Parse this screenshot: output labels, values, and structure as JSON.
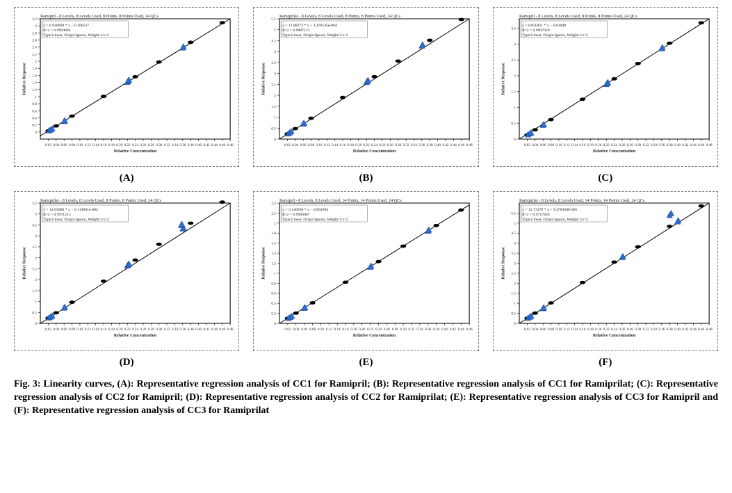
{
  "figure_caption_parts": {
    "prefix": "Fig. 3: Linearity curves, (A): ",
    "a": "Representative regression analysis of CC1 for Ramipril; ",
    "b_label": "(B): ",
    "b": "Representative regression analysis of CC1 for Ramiprilat; ",
    "c_label": "(C): ",
    "c": "Representative regression analysis of CC2 for Ramipril; ",
    "d_label": "(D): ",
    "d": "Representative regression analysis of CC2 for Ramiprilat; ",
    "e_label": "(E): ",
    "e": "Representative regression analysis of CC3 for Ramipril and ",
    "f_label": "(F): ",
    "f": "Representative regression analysis of CC3 for Ramiprilat"
  },
  "global": {
    "background_color": "#ffffff",
    "panel_border_color": "#777777",
    "plot_border_color": "#000000",
    "axis_text_color": "#222222",
    "regression_line_color": "#000000",
    "cal_marker_fill": "#000000",
    "qc_marker_fill": "#2e6fd6",
    "qc_marker_stroke": "#1a4a9a",
    "tick_color": "#000000",
    "info_box_bg": "#ffffff",
    "info_box_text": "#111111",
    "axis_label_fontsize": 6,
    "tick_fontsize": 5,
    "info_fontsize": 5.5,
    "y_axis_title_fontsize": 6,
    "title_fontsize": 6
  },
  "panels": {
    "A": {
      "letter": "(A)",
      "title": "Ramipril - 8 Levels, 8 Levels Used, 8 Points, 8 Points Used, 24 QCs",
      "info_lines": [
        "y = 6.946899 * x − 0.106537",
        "R^2 = 0.9994802",
        "Type:Linear, Origin:Ignore, Weight:1/x^2"
      ],
      "xlabel": "Relative Concentration",
      "ylabel": "Relative Response",
      "xlim": [
        0.0,
        0.48
      ],
      "ylim": [
        -0.2,
        3.2
      ],
      "xticks": [
        0.02,
        0.04,
        0.06,
        0.08,
        0.1,
        0.12,
        0.14,
        0.16,
        0.18,
        0.2,
        0.22,
        0.24,
        0.26,
        0.28,
        0.3,
        0.32,
        0.34,
        0.36,
        0.38,
        0.4,
        0.42,
        0.44,
        0.46,
        0.48
      ],
      "yticks": [
        0.0,
        0.2,
        0.4,
        0.6,
        0.8,
        1.0,
        1.2,
        1.4,
        1.6,
        1.8,
        2.0,
        2.2,
        2.4,
        2.6,
        2.8,
        3.0,
        3.2
      ],
      "cal_points": [
        {
          "x": 0.02,
          "y": 0.0324
        },
        {
          "x": 0.04,
          "y": 0.171
        },
        {
          "x": 0.08,
          "y": 0.449
        },
        {
          "x": 0.16,
          "y": 1.005
        },
        {
          "x": 0.24,
          "y": 1.561
        },
        {
          "x": 0.3,
          "y": 1.978
        },
        {
          "x": 0.38,
          "y": 2.533
        },
        {
          "x": 0.46,
          "y": 3.089
        }
      ],
      "qc_points": [
        {
          "x": 0.022,
          "y": 0.05
        },
        {
          "x": 0.026,
          "y": 0.07
        },
        {
          "x": 0.03,
          "y": 0.1
        },
        {
          "x": 0.06,
          "y": 0.31
        },
        {
          "x": 0.062,
          "y": 0.33
        },
        {
          "x": 0.22,
          "y": 1.42
        },
        {
          "x": 0.222,
          "y": 1.45
        },
        {
          "x": 0.224,
          "y": 1.48
        },
        {
          "x": 0.36,
          "y": 2.39
        },
        {
          "x": 0.362,
          "y": 2.42
        }
      ]
    },
    "B": {
      "letter": "(B)",
      "title": "Ramiprilat - 8 Levels, 8 Levels Used, 8 Points, 8 Points Used, 24 QCs",
      "info_lines": [
        "y = 11.88272 * x + 3.470145e-004",
        "R^2 = 0.9987121",
        "Type:Linear, Origin:Ignore, Weight:1/x^2"
      ],
      "xlabel": "Relative Concentration",
      "ylabel": "Relative Response",
      "xlim": [
        0.0,
        0.48
      ],
      "ylim": [
        0.0,
        5.5
      ],
      "xticks": [
        0.02,
        0.04,
        0.06,
        0.08,
        0.1,
        0.12,
        0.14,
        0.16,
        0.18,
        0.2,
        0.22,
        0.24,
        0.26,
        0.28,
        0.3,
        0.32,
        0.34,
        0.36,
        0.38,
        0.4,
        0.42,
        0.44,
        0.46,
        0.48
      ],
      "yticks": [
        0.0,
        0.5,
        1.0,
        1.5,
        2.0,
        2.5,
        3.0,
        3.5,
        4.0,
        4.5,
        5.0,
        5.5
      ],
      "cal_points": [
        {
          "x": 0.02,
          "y": 0.238
        },
        {
          "x": 0.04,
          "y": 0.476
        },
        {
          "x": 0.08,
          "y": 0.951
        },
        {
          "x": 0.16,
          "y": 1.902
        },
        {
          "x": 0.24,
          "y": 2.852
        },
        {
          "x": 0.3,
          "y": 3.565
        },
        {
          "x": 0.38,
          "y": 4.516
        },
        {
          "x": 0.46,
          "y": 5.466
        }
      ],
      "qc_points": [
        {
          "x": 0.022,
          "y": 0.26
        },
        {
          "x": 0.026,
          "y": 0.31
        },
        {
          "x": 0.03,
          "y": 0.36
        },
        {
          "x": 0.06,
          "y": 0.71
        },
        {
          "x": 0.062,
          "y": 0.74
        },
        {
          "x": 0.22,
          "y": 2.61
        },
        {
          "x": 0.222,
          "y": 2.66
        },
        {
          "x": 0.224,
          "y": 2.7
        },
        {
          "x": 0.36,
          "y": 4.28
        },
        {
          "x": 0.362,
          "y": 4.33
        }
      ]
    },
    "C": {
      "letter": "(C)",
      "title": "Ramipril - 8 Levels, 8 Levels Used, 8 Points, 8 Points Used, 24 QCs",
      "info_lines": [
        "y = 8.050411 * x − 0.03008",
        "R^2 = 0.9997020",
        "Type:Linear, Origin:Ignore, Weight:1/x^2"
      ],
      "xlabel": "Relative Concentration",
      "ylabel": "Relative Response",
      "xlim": [
        0.0,
        0.48
      ],
      "ylim": [
        0.0,
        3.8
      ],
      "xticks": [
        0.02,
        0.04,
        0.06,
        0.08,
        0.1,
        0.12,
        0.14,
        0.16,
        0.18,
        0.2,
        0.22,
        0.24,
        0.26,
        0.28,
        0.3,
        0.32,
        0.34,
        0.36,
        0.38,
        0.4,
        0.42,
        0.44,
        0.46,
        0.48
      ],
      "yticks": [
        0.0,
        0.5,
        1.0,
        1.5,
        2.0,
        2.5,
        3.0,
        3.5
      ],
      "cal_points": [
        {
          "x": 0.02,
          "y": 0.131
        },
        {
          "x": 0.04,
          "y": 0.292
        },
        {
          "x": 0.08,
          "y": 0.614
        },
        {
          "x": 0.16,
          "y": 1.258
        },
        {
          "x": 0.24,
          "y": 1.902
        },
        {
          "x": 0.3,
          "y": 2.385
        },
        {
          "x": 0.38,
          "y": 3.029
        },
        {
          "x": 0.46,
          "y": 3.673
        }
      ],
      "qc_points": [
        {
          "x": 0.022,
          "y": 0.15
        },
        {
          "x": 0.026,
          "y": 0.18
        },
        {
          "x": 0.03,
          "y": 0.21
        },
        {
          "x": 0.06,
          "y": 0.45
        },
        {
          "x": 0.062,
          "y": 0.47
        },
        {
          "x": 0.22,
          "y": 1.74
        },
        {
          "x": 0.222,
          "y": 1.77
        },
        {
          "x": 0.224,
          "y": 1.8
        },
        {
          "x": 0.36,
          "y": 2.87
        },
        {
          "x": 0.362,
          "y": 2.9
        }
      ]
    },
    "D": {
      "letter": "(D)",
      "title": "Ramiprilat - 8 Levels, 8 Levels Used, 8 Points, 8 Points Used, 24 QCs",
      "info_lines": [
        "y = 12.05080 * x − 0.113891e-004",
        "R^2 = 0.9971213",
        "Type:Linear, Origin:Ignore, Weight:1/x^2"
      ],
      "xlabel": "Relative Concentration",
      "ylabel": "Relative Response",
      "xlim": [
        0.0,
        0.48
      ],
      "ylim": [
        0.0,
        5.5
      ],
      "xticks": [
        0.02,
        0.04,
        0.06,
        0.08,
        0.1,
        0.12,
        0.14,
        0.16,
        0.18,
        0.2,
        0.22,
        0.24,
        0.26,
        0.28,
        0.3,
        0.32,
        0.34,
        0.36,
        0.38,
        0.4,
        0.42,
        0.44,
        0.46,
        0.48
      ],
      "yticks": [
        0.0,
        0.5,
        1.0,
        1.5,
        2.0,
        2.5,
        3.0,
        3.5,
        4.0,
        4.5,
        5.0,
        5.5
      ],
      "cal_points": [
        {
          "x": 0.02,
          "y": 0.241
        },
        {
          "x": 0.04,
          "y": 0.482
        },
        {
          "x": 0.08,
          "y": 0.964
        },
        {
          "x": 0.16,
          "y": 1.928
        },
        {
          "x": 0.24,
          "y": 2.892
        },
        {
          "x": 0.3,
          "y": 3.615
        },
        {
          "x": 0.38,
          "y": 4.579
        },
        {
          "x": 0.46,
          "y": 5.543
        }
      ],
      "qc_points": [
        {
          "x": 0.022,
          "y": 0.27
        },
        {
          "x": 0.026,
          "y": 0.31
        },
        {
          "x": 0.03,
          "y": 0.36
        },
        {
          "x": 0.06,
          "y": 0.72
        },
        {
          "x": 0.062,
          "y": 0.75
        },
        {
          "x": 0.22,
          "y": 2.65
        },
        {
          "x": 0.222,
          "y": 2.69
        },
        {
          "x": 0.224,
          "y": 2.73
        },
        {
          "x": 0.36,
          "y": 4.34
        },
        {
          "x": 0.362,
          "y": 4.38
        },
        {
          "x": 0.356,
          "y": 4.5
        },
        {
          "x": 0.358,
          "y": 4.55
        }
      ]
    },
    "E": {
      "letter": "(E)",
      "title": "Ramipril - 8 Levels, 8 Levels Used, 14 Points, 14 Points Used, 24 QCs",
      "info_lines": [
        "y = 5.140030 * x − 0.002094",
        "R^2 = 0.9990807",
        "Type:Linear, Origin:Ignore, Weight:1/x^2"
      ],
      "xlabel": "Relative Concentration",
      "ylabel": "Relative Response",
      "xlim": [
        0.0,
        0.46
      ],
      "ylim": [
        0.0,
        2.4
      ],
      "xticks": [
        0.02,
        0.04,
        0.06,
        0.08,
        0.1,
        0.12,
        0.14,
        0.16,
        0.18,
        0.2,
        0.22,
        0.24,
        0.26,
        0.28,
        0.3,
        0.32,
        0.34,
        0.36,
        0.38,
        0.4,
        0.42,
        0.44,
        0.46
      ],
      "yticks": [
        0.0,
        0.2,
        0.4,
        0.6,
        0.8,
        1.0,
        1.2,
        1.4,
        1.6,
        1.8,
        2.0,
        2.2,
        2.4
      ],
      "cal_points": [
        {
          "x": 0.02,
          "y": 0.101
        },
        {
          "x": 0.04,
          "y": 0.204
        },
        {
          "x": 0.08,
          "y": 0.409
        },
        {
          "x": 0.16,
          "y": 0.82
        },
        {
          "x": 0.24,
          "y": 1.232
        },
        {
          "x": 0.3,
          "y": 1.54
        },
        {
          "x": 0.38,
          "y": 1.951
        },
        {
          "x": 0.44,
          "y": 2.26
        }
      ],
      "qc_points": [
        {
          "x": 0.022,
          "y": 0.11
        },
        {
          "x": 0.026,
          "y": 0.13
        },
        {
          "x": 0.03,
          "y": 0.15
        },
        {
          "x": 0.06,
          "y": 0.31
        },
        {
          "x": 0.062,
          "y": 0.32
        },
        {
          "x": 0.22,
          "y": 1.13
        },
        {
          "x": 0.222,
          "y": 1.15
        },
        {
          "x": 0.36,
          "y": 1.85
        },
        {
          "x": 0.362,
          "y": 1.87
        }
      ]
    },
    "F": {
      "letter": "(F)",
      "title": "Ramiprilat - 8 Levels, 8 Levels Used, 14 Points, 14 Points Used, 24 QCs",
      "info_lines": [
        "y = 12.72379 * x + 9.4783948-005",
        "R^2 = 0.9717928",
        "Type:Linear, Origin:Ignore, Weight:1/x^2"
      ],
      "xlabel": "Relative Concentration",
      "ylabel": "Relative Response",
      "xlim": [
        0.0,
        0.48
      ],
      "ylim": [
        0.0,
        6.0
      ],
      "xticks": [
        0.02,
        0.04,
        0.06,
        0.08,
        0.1,
        0.12,
        0.14,
        0.16,
        0.18,
        0.2,
        0.22,
        0.24,
        0.26,
        0.28,
        0.3,
        0.32,
        0.34,
        0.36,
        0.38,
        0.4,
        0.42,
        0.44,
        0.46,
        0.48
      ],
      "yticks": [
        0.0,
        0.5,
        1.0,
        1.5,
        2.0,
        2.5,
        3.0,
        3.5,
        4.0,
        4.5,
        5.0,
        5.5
      ],
      "cal_points": [
        {
          "x": 0.02,
          "y": 0.255
        },
        {
          "x": 0.04,
          "y": 0.509
        },
        {
          "x": 0.08,
          "y": 1.018
        },
        {
          "x": 0.16,
          "y": 2.036
        },
        {
          "x": 0.24,
          "y": 3.054
        },
        {
          "x": 0.3,
          "y": 3.817
        },
        {
          "x": 0.38,
          "y": 4.835
        },
        {
          "x": 0.46,
          "y": 5.853
        }
      ],
      "qc_points": [
        {
          "x": 0.022,
          "y": 0.28
        },
        {
          "x": 0.026,
          "y": 0.33
        },
        {
          "x": 0.03,
          "y": 0.38
        },
        {
          "x": 0.06,
          "y": 0.76
        },
        {
          "x": 0.062,
          "y": 0.79
        },
        {
          "x": 0.26,
          "y": 3.31
        },
        {
          "x": 0.262,
          "y": 3.35
        },
        {
          "x": 0.4,
          "y": 5.09
        },
        {
          "x": 0.402,
          "y": 5.14
        },
        {
          "x": 0.38,
          "y": 5.4
        },
        {
          "x": 0.384,
          "y": 5.5
        }
      ]
    }
  }
}
